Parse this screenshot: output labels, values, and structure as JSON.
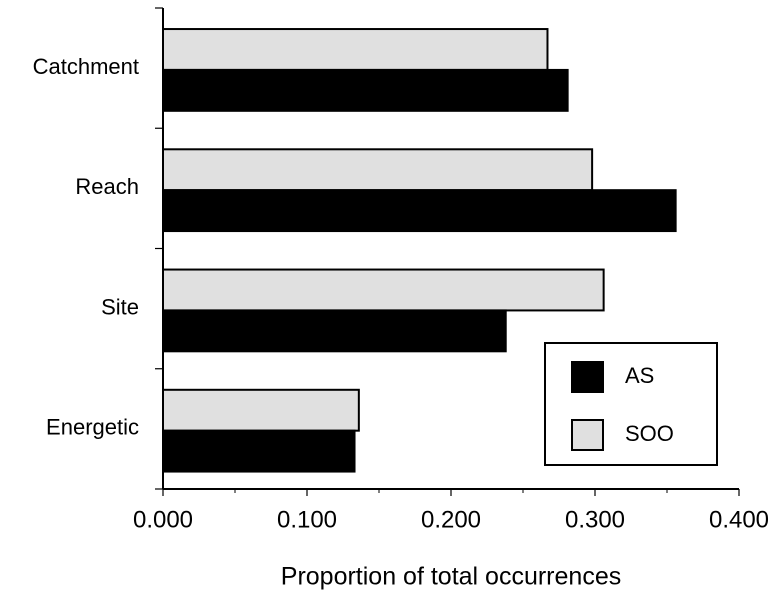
{
  "chart_data": {
    "type": "bar",
    "orientation": "horizontal",
    "categories": [
      "Catchment",
      "Reach",
      "Site",
      "Energetic"
    ],
    "series": [
      {
        "name": "AS",
        "color": "#000000",
        "values": [
          0.281,
          0.356,
          0.238,
          0.133
        ]
      },
      {
        "name": "SOO",
        "color": "#e0e0e0",
        "values": [
          0.267,
          0.298,
          0.306,
          0.136
        ]
      }
    ],
    "x_label": "Proportion of total occurrences",
    "xlim": [
      0,
      0.4
    ],
    "xticks": [
      {
        "value": 0,
        "label": "0.000"
      },
      {
        "value": 0.1,
        "label": "0.100"
      },
      {
        "value": 0.2,
        "label": "0.200"
      },
      {
        "value": 0.3,
        "label": "0.300"
      },
      {
        "value": 0.4,
        "label": "0.400"
      }
    ],
    "legend": "lower right",
    "grid": false
  }
}
